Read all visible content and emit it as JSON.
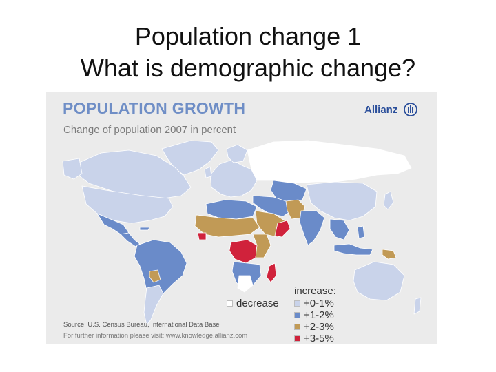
{
  "slide": {
    "title_line1": "Population change 1",
    "title_line2": "What is demographic change?"
  },
  "map": {
    "title": "POPULATION GROWTH",
    "subtitle": "Change of population 2007 in percent",
    "brand": "Allianz",
    "source": "Source: U.S. Census Bureau, International Data Base",
    "further_info": "For further information please visit: www.knowledge.allianz.com",
    "legend": {
      "heading": "increase:",
      "decrease_label": "decrease",
      "items": [
        {
          "label": "+0-1%",
          "color": "#c9d3ea"
        },
        {
          "label": "+1-2%",
          "color": "#6a8bc9"
        },
        {
          "label": "+2-3%",
          "color": "#c19a56"
        },
        {
          "label": "+3-5%",
          "color": "#d0223b"
        }
      ],
      "decrease_color": "#ffffff"
    },
    "colors": {
      "background": "#ebebeb",
      "ocean": "#ebebeb",
      "border": "#ffffff",
      "title_color": "#6f8ec6",
      "brand_color": "#2b4f9b"
    },
    "regions": [
      {
        "name": "North America (Canada)",
        "class": "+0-1%"
      },
      {
        "name": "United States",
        "class": "+0-1%"
      },
      {
        "name": "Mexico & Central America",
        "class": "+1-2%"
      },
      {
        "name": "Greenland",
        "class": "+0-1%"
      },
      {
        "name": "South America (Brazil etc.)",
        "class": "+1-2%"
      },
      {
        "name": "Argentina / Chile",
        "class": "+0-1%"
      },
      {
        "name": "Paraguay",
        "class": "+2-3%"
      },
      {
        "name": "Europe",
        "class": "+0-1%"
      },
      {
        "name": "Russia / Eastern Europe",
        "class": "decrease"
      },
      {
        "name": "North Africa",
        "class": "+1-2%"
      },
      {
        "name": "Sahel & West Africa",
        "class": "+2-3%"
      },
      {
        "name": "Liberia / Sierra Leone",
        "class": "+3-5%"
      },
      {
        "name": "Central Africa (DR Congo, Uganda)",
        "class": "+3-5%"
      },
      {
        "name": "East Africa",
        "class": "+2-3%"
      },
      {
        "name": "Southern Africa",
        "class": "+1-2%"
      },
      {
        "name": "South Africa / Botswana",
        "class": "decrease"
      },
      {
        "name": "Madagascar",
        "class": "+3-5%"
      },
      {
        "name": "Arabian Peninsula",
        "class": "+2-3%"
      },
      {
        "name": "Oman / Yemen coast",
        "class": "+3-5%"
      },
      {
        "name": "Middle East / Iran",
        "class": "+1-2%"
      },
      {
        "name": "Central Asia",
        "class": "+1-2%"
      },
      {
        "name": "Afghanistan / Pakistan",
        "class": "+2-3%"
      },
      {
        "name": "India",
        "class": "+1-2%"
      },
      {
        "name": "China",
        "class": "+0-1%"
      },
      {
        "name": "Southeast Asia",
        "class": "+1-2%"
      },
      {
        "name": "Indonesia",
        "class": "+1-2%"
      },
      {
        "name": "Papua New Guinea",
        "class": "+2-3%"
      },
      {
        "name": "Japan",
        "class": "+0-1%"
      },
      {
        "name": "Australia",
        "class": "+0-1%"
      },
      {
        "name": "New Zealand",
        "class": "+0-1%"
      }
    ]
  }
}
